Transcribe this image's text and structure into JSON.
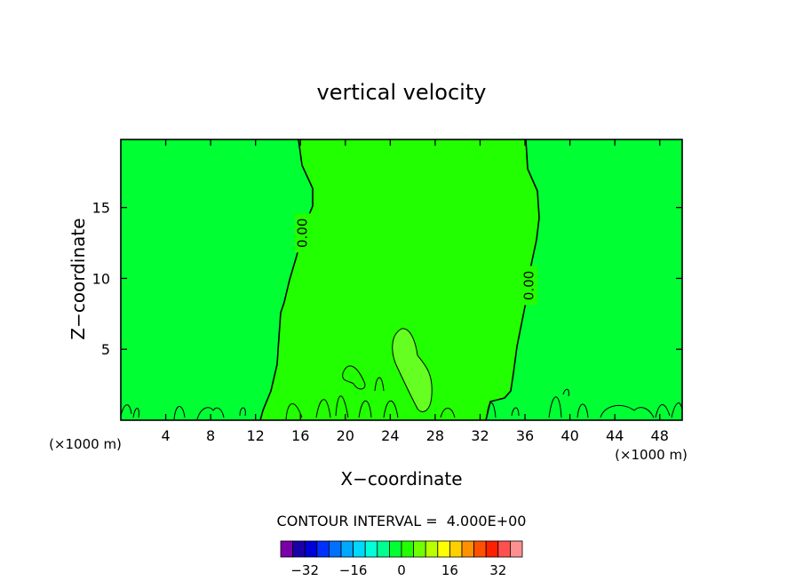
{
  "chart_data": {
    "type": "contour",
    "title": "vertical velocity",
    "xlabel": "X−coordinate",
    "ylabel": "Z−coordinate",
    "x_unit_left": "(×1000 m)",
    "x_unit_right": "(×1000 m)",
    "xlim": [
      0,
      50
    ],
    "ylim": [
      0,
      19.8
    ],
    "x_ticks": [
      4,
      8,
      12,
      16,
      20,
      24,
      28,
      32,
      36,
      40,
      44,
      48
    ],
    "y_ticks": [
      5,
      10,
      15
    ],
    "background_color": "#00ff33",
    "regions": [
      {
        "name": "positive",
        "color": "#22ff00",
        "x_range": [
          13,
          36.5
        ]
      },
      {
        "name": "updraft core",
        "color": "#66ff22",
        "center": [
          25.5,
          4.5
        ]
      }
    ],
    "contour_labels": [
      {
        "text": "0.00",
        "x": 16.2,
        "z": 13.2
      },
      {
        "text": "0.00",
        "x": 36.4,
        "z": 9.5
      }
    ],
    "contour_interval_text": "CONTOUR INTERVAL =  4.000E+00",
    "colorbar": {
      "labels": [
        "−32",
        "−16",
        "0",
        "16",
        "32"
      ],
      "label_values": [
        -32,
        -16,
        0,
        16,
        32
      ],
      "min": -40,
      "max": 40,
      "step": 4,
      "colors": [
        "#7a00a8",
        "#1a00a8",
        "#0000d8",
        "#0030ff",
        "#0070ff",
        "#00a8ff",
        "#00d8ff",
        "#00ffd8",
        "#00ff90",
        "#00ff33",
        "#22ff00",
        "#70ff00",
        "#b8ff00",
        "#ffff00",
        "#ffd000",
        "#ff9000",
        "#ff5000",
        "#ff2000",
        "#ff5050",
        "#ff9090"
      ]
    }
  }
}
